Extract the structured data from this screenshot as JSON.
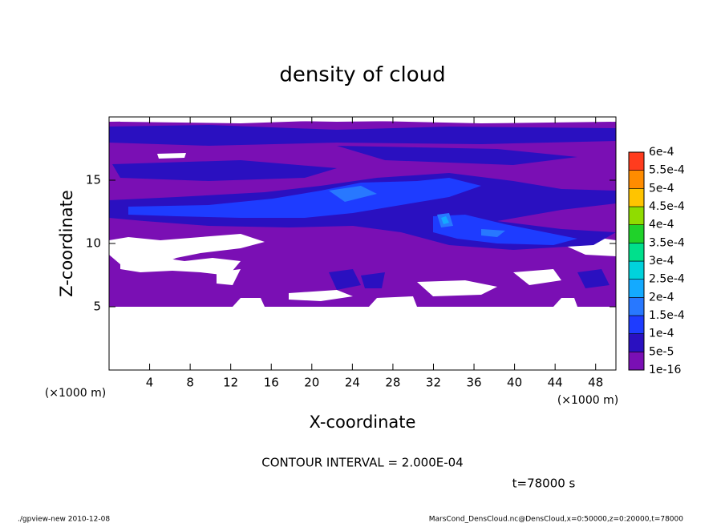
{
  "chart_data": {
    "type": "contour",
    "title": "density of cloud",
    "x_label": "X-coordinate",
    "y_label": "Z-coordinate",
    "x_unit": "(×1000 m)",
    "y_unit": "(×1000 m)",
    "xlim": [
      0,
      50
    ],
    "xticks": [
      4,
      8,
      12,
      16,
      20,
      24,
      28,
      32,
      36,
      40,
      44,
      48
    ],
    "ylim": [
      0,
      20
    ],
    "yticks": [
      5,
      10,
      15
    ],
    "colorbar": {
      "levels": [
        1e-16,
        {
          "value": 5e-05,
          "label": "5e-5"
        },
        {
          "value": 0.0001,
          "label": "1e-4"
        },
        {
          "value": 0.00015,
          "label": "1.5e-4"
        },
        {
          "value": 0.0002,
          "label": "2e-4"
        },
        {
          "value": 0.00025,
          "label": "2.5e-4"
        },
        {
          "value": 0.0003,
          "label": "3e-4"
        },
        {
          "value": 0.00035,
          "label": "3.5e-4"
        },
        {
          "value": 0.0004,
          "label": "4e-4"
        },
        {
          "value": 0.00045,
          "label": "4.5e-4"
        },
        {
          "value": 0.0005,
          "label": "5e-4"
        },
        {
          "value": 0.00055,
          "label": "5.5e-4"
        },
        {
          "value": 0.0006,
          "label": "6e-4"
        }
      ],
      "colors": [
        "#7a0fb4",
        "#2a10c0",
        "#1e3cff",
        "#2878ff",
        "#14aaff",
        "#00d2dc",
        "#00e08c",
        "#20d22a",
        "#90dc00",
        "#ffc400",
        "#ff8c00",
        "#ff3c1e"
      ]
    },
    "annotation": "CONTOUR INTERVAL = 2.000E-04",
    "time_label": "t=78000 s",
    "footer_left": "./gpview-new   2010-12-08",
    "footer_right": "MarsCond_DensCloud.nc@DensCloud,x=0:50000,z=0:20000,t=78000"
  }
}
